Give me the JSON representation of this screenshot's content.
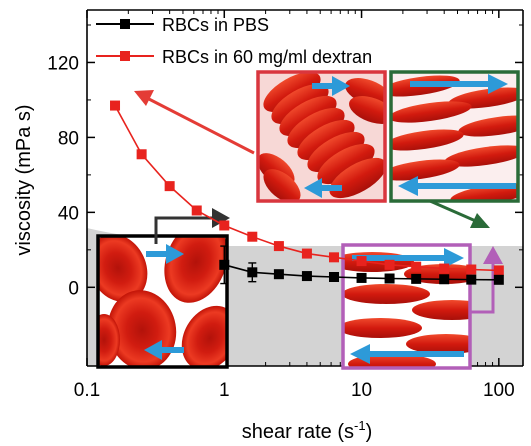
{
  "chart_data": {
    "type": "line",
    "xlabel": "shear rate (s",
    "xlabel_sup": "-1",
    "xlabel_close": ")",
    "ylabel": "viscosity (mPa s)",
    "x_scale": "log",
    "xlim": [
      0.1,
      150
    ],
    "ylim": [
      -42,
      148
    ],
    "x_ticks": [
      0.1,
      1,
      10,
      100
    ],
    "x_tick_labels": [
      "0.1",
      "1",
      "10",
      "100"
    ],
    "y_ticks": [
      0,
      40,
      80,
      120
    ],
    "y_tick_labels": [
      "0",
      "40",
      "80",
      "120"
    ],
    "legend_position": "top-left",
    "series": [
      {
        "name": "RBCs in PBS",
        "color": "#000000",
        "marker": "square",
        "x": [
          1,
          1.6,
          2.5,
          4,
          6.3,
          10,
          16,
          25,
          40,
          63,
          100
        ],
        "y": [
          12,
          8,
          7,
          6,
          5.5,
          5,
          4.7,
          4.5,
          4.3,
          4.1,
          4
        ],
        "errors": [
          10,
          5,
          0,
          0,
          0,
          0,
          0,
          0,
          0,
          0,
          0
        ]
      },
      {
        "name": "RBCs in 60 mg/ml dextran",
        "color": "#e8231e",
        "marker": "square",
        "x": [
          0.16,
          0.25,
          0.4,
          0.63,
          1,
          1.6,
          2.5,
          4,
          6.3,
          10,
          16,
          25,
          40,
          63,
          100
        ],
        "y": [
          97,
          71,
          54,
          41,
          33,
          27,
          22,
          18,
          16,
          14,
          12,
          11,
          10,
          9.5,
          9
        ]
      }
    ],
    "insets": [
      {
        "name": "single-cells-inset",
        "frame_color": "#000000"
      },
      {
        "name": "rouleaux-inset",
        "frame_color": "#d9363e"
      },
      {
        "name": "aligned-dextran-inset",
        "frame_color": "#2a6b38"
      },
      {
        "name": "aligned-pbs-inset",
        "frame_color": "#b25fb8"
      }
    ]
  }
}
